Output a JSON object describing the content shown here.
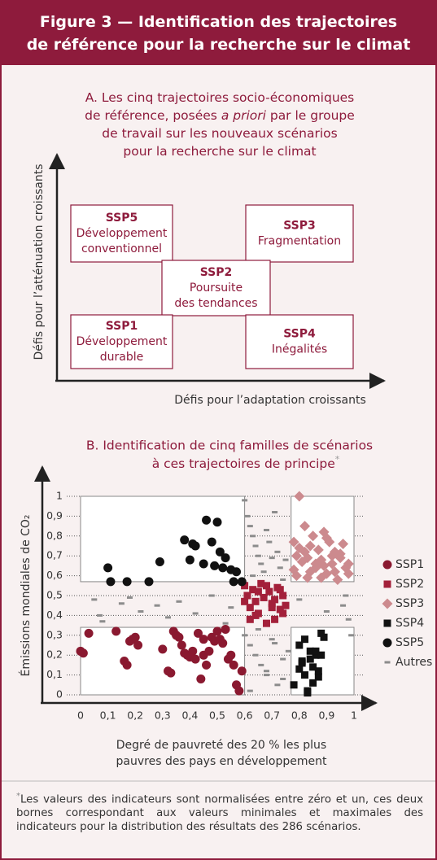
{
  "header": {
    "title_lines": [
      "Figure 3 — Identification des trajectoires",
      "de référence pour la recherche sur le climat"
    ]
  },
  "diagram": {
    "title_lines": [
      [
        "A. Les cinq trajectoires socio-économiques"
      ],
      [
        "de référence, posées ",
        "a priori",
        " par le groupe"
      ],
      [
        "de travail sur les nouveaux scénarios"
      ],
      [
        "pour la recherche sur le climat"
      ]
    ],
    "y_label": "Défis pour l’atténuation croissants",
    "x_label": "Défis pour l’adaptation croissants",
    "boxes": [
      {
        "code": "SSP5",
        "lines": [
          "Développement",
          "conventionnel"
        ]
      },
      {
        "code": "SSP3",
        "lines": [
          "Fragmentation"
        ]
      },
      {
        "code": "SSP2",
        "lines": [
          "Poursuite",
          "des tendances"
        ]
      },
      {
        "code": "SSP1",
        "lines": [
          "Développement",
          "durable"
        ]
      },
      {
        "code": "SSP4",
        "lines": [
          "Inégalités"
        ]
      }
    ]
  },
  "chart_data": {
    "type": "scatter",
    "title_lines": [
      "B. Identification de cinq familles de scénarios",
      "à ces trajectoires de principe"
    ],
    "title_mark": "*",
    "x_label_lines": [
      "Degré de pauvreté des 20 % les plus",
      "pauvres des pays en développement"
    ],
    "y_label": "Émissions mondiales de CO₂",
    "xlim": [
      0,
      1
    ],
    "ylim": [
      0,
      1
    ],
    "xticks": [
      0,
      {
        "value": 0.1,
        "label": "0,1"
      },
      {
        "value": 0.2,
        "label": "0,2"
      },
      {
        "value": 0.3,
        "label": "0,3"
      },
      {
        "value": 0.4,
        "label": "0,4"
      },
      {
        "value": 0.5,
        "label": "0,5"
      },
      {
        "value": 0.6,
        "label": "0,6"
      },
      {
        "value": 0.7,
        "label": "0,7"
      },
      {
        "value": 0.8,
        "label": "0,8"
      },
      {
        "value": 0.9,
        "label": "0,9"
      },
      1
    ],
    "yticks": [
      0,
      {
        "value": 0.1,
        "label": "0,1"
      },
      {
        "value": 0.2,
        "label": "0,2"
      },
      {
        "value": 0.3,
        "label": "0,3"
      },
      {
        "value": 0.4,
        "label": "0,4"
      },
      {
        "value": 0.5,
        "label": "0,5"
      },
      {
        "value": 0.6,
        "label": "0,6"
      },
      {
        "value": 0.7,
        "label": "0,7"
      },
      {
        "value": 0.8,
        "label": "0,8"
      },
      {
        "value": 0.9,
        "label": "0,9"
      },
      1
    ],
    "grid": true,
    "legend": "right",
    "regions": [
      {
        "xlim": [
          0,
          0.6
        ],
        "ylim": [
          0.57,
          1
        ]
      },
      {
        "xlim": [
          0,
          0.6
        ],
        "ylim": [
          0,
          0.34
        ]
      },
      {
        "xlim": [
          0.77,
          1
        ],
        "ylim": [
          0.57,
          1
        ]
      },
      {
        "xlim": [
          0.77,
          1
        ],
        "ylim": [
          0,
          0.34
        ]
      }
    ],
    "series": [
      {
        "name": "SSP1",
        "color": "#8a1930",
        "marker": "circle",
        "x": [
          0,
          0.01,
          0.03,
          0.13,
          0.16,
          0.17,
          0.18,
          0.19,
          0.2,
          0.21,
          0.32,
          0.33,
          0.34,
          0.35,
          0.36,
          0.37,
          0.38,
          0.39,
          0.4,
          0.41,
          0.42,
          0.43,
          0.44,
          0.45,
          0.46,
          0.47,
          0.48,
          0.49,
          0.5,
          0.51,
          0.52,
          0.53,
          0.54,
          0.55,
          0.56,
          0.57,
          0.58,
          0.59,
          0.45,
          0.3
        ],
        "values": [
          0.22,
          0.21,
          0.31,
          0.32,
          0.17,
          0.15,
          0.27,
          0.28,
          0.29,
          0.25,
          0.12,
          0.11,
          0.32,
          0.3,
          0.29,
          0.25,
          0.21,
          0.2,
          0.19,
          0.22,
          0.18,
          0.31,
          0.08,
          0.2,
          0.15,
          0.22,
          0.29,
          0.27,
          0.32,
          0.28,
          0.26,
          0.33,
          0.18,
          0.2,
          0.15,
          0.05,
          0.02,
          0.12,
          0.28,
          0.23
        ]
      },
      {
        "name": "SSP2",
        "color": "#a3203a",
        "marker": "square",
        "x": [
          0.6,
          0.61,
          0.62,
          0.63,
          0.64,
          0.65,
          0.66,
          0.67,
          0.68,
          0.69,
          0.7,
          0.71,
          0.72,
          0.73,
          0.74,
          0.75,
          0.62,
          0.65,
          0.68,
          0.71,
          0.74,
          0.6,
          0.64,
          0.7,
          0.73
        ],
        "values": [
          0.55,
          0.5,
          0.44,
          0.53,
          0.47,
          0.41,
          0.56,
          0.49,
          0.36,
          0.52,
          0.46,
          0.38,
          0.54,
          0.43,
          0.5,
          0.45,
          0.38,
          0.52,
          0.55,
          0.48,
          0.41,
          0.47,
          0.4,
          0.44,
          0.53
        ]
      },
      {
        "name": "SSP3",
        "color": "#cc8a8e",
        "marker": "diamond",
        "x": [
          0.8,
          0.78,
          0.79,
          0.81,
          0.82,
          0.83,
          0.84,
          0.85,
          0.86,
          0.87,
          0.88,
          0.89,
          0.9,
          0.91,
          0.92,
          0.93,
          0.94,
          0.95,
          0.96,
          0.97,
          0.98,
          0.78,
          0.8,
          0.83,
          0.86,
          0.88,
          0.9,
          0.93,
          0.95,
          0.98,
          0.79,
          0.84,
          0.89,
          0.92,
          0.82
        ],
        "values": [
          1,
          0.77,
          0.7,
          0.67,
          0.85,
          0.59,
          0.62,
          0.8,
          0.64,
          0.73,
          0.68,
          0.82,
          0.61,
          0.77,
          0.66,
          0.72,
          0.58,
          0.69,
          0.76,
          0.64,
          0.61,
          0.63,
          0.74,
          0.69,
          0.66,
          0.59,
          0.79,
          0.62,
          0.71,
          0.66,
          0.6,
          0.75,
          0.65,
          0.7,
          0.72
        ]
      },
      {
        "name": "SSP4",
        "color": "#111111",
        "marker": "square",
        "x": [
          0.78,
          0.8,
          0.81,
          0.82,
          0.83,
          0.84,
          0.85,
          0.86,
          0.87,
          0.88,
          0.89,
          0.8,
          0.82,
          0.84,
          0.85,
          0.86,
          0.88,
          0.81,
          0.83,
          0.87
        ],
        "values": [
          0.05,
          0.25,
          0.17,
          0.1,
          0.02,
          0.22,
          0.14,
          0.2,
          0.09,
          0.31,
          0.29,
          0.13,
          0.28,
          0.18,
          0.06,
          0.22,
          0.2,
          0.16,
          0.01,
          0.12
        ]
      },
      {
        "name": "SSP5",
        "color": "#111111",
        "marker": "circle",
        "x": [
          0.1,
          0.11,
          0.17,
          0.25,
          0.29,
          0.38,
          0.4,
          0.41,
          0.42,
          0.45,
          0.46,
          0.48,
          0.49,
          0.5,
          0.51,
          0.52,
          0.53,
          0.55,
          0.56,
          0.57,
          0.59
        ],
        "values": [
          0.64,
          0.57,
          0.57,
          0.57,
          0.67,
          0.78,
          0.68,
          0.76,
          0.75,
          0.66,
          0.88,
          0.77,
          0.65,
          0.87,
          0.72,
          0.64,
          0.69,
          0.63,
          0.57,
          0.62,
          0.57
        ]
      },
      {
        "name": "Autres",
        "color": "#8c8c8c",
        "marker": "dash",
        "x": [
          0.05,
          0.07,
          0.08,
          0.15,
          0.18,
          0.22,
          0.28,
          0.32,
          0.36,
          0.42,
          0.48,
          0.53,
          0.55,
          0.6,
          0.61,
          0.62,
          0.63,
          0.64,
          0.65,
          0.66,
          0.67,
          0.68,
          0.69,
          0.7,
          0.71,
          0.72,
          0.73,
          0.74,
          0.75,
          0.6,
          0.62,
          0.64,
          0.66,
          0.68,
          0.7,
          0.72,
          0.74,
          0.76,
          0.62,
          0.65,
          0.68,
          0.71,
          0.74,
          0.96,
          0.98,
          0.97,
          0.99,
          0.8,
          0.9,
          0.63
        ],
        "values": [
          0.48,
          0.4,
          0.37,
          0.46,
          0.49,
          0.42,
          0.45,
          0.39,
          0.47,
          0.41,
          0.5,
          0.36,
          0.44,
          0.98,
          0.9,
          0.85,
          0.8,
          0.75,
          0.7,
          0.66,
          0.62,
          0.83,
          0.77,
          0.69,
          0.92,
          0.72,
          0.64,
          0.58,
          0.68,
          0.3,
          0.25,
          0.2,
          0.15,
          0.1,
          0.28,
          0.05,
          0.18,
          0.22,
          0.02,
          0.33,
          0.12,
          0.26,
          0.08,
          0.45,
          0.38,
          0.5,
          0.3,
          0.48,
          0.42,
          0.6
        ]
      }
    ]
  },
  "footnote": {
    "mark": "*",
    "text": "Les valeurs des indicateurs sont normalisées entre zéro et un, ces deux bornes correspondant aux valeurs minimales et maximales des indicateurs pour la distribution des résultats des 286 scénarios."
  }
}
